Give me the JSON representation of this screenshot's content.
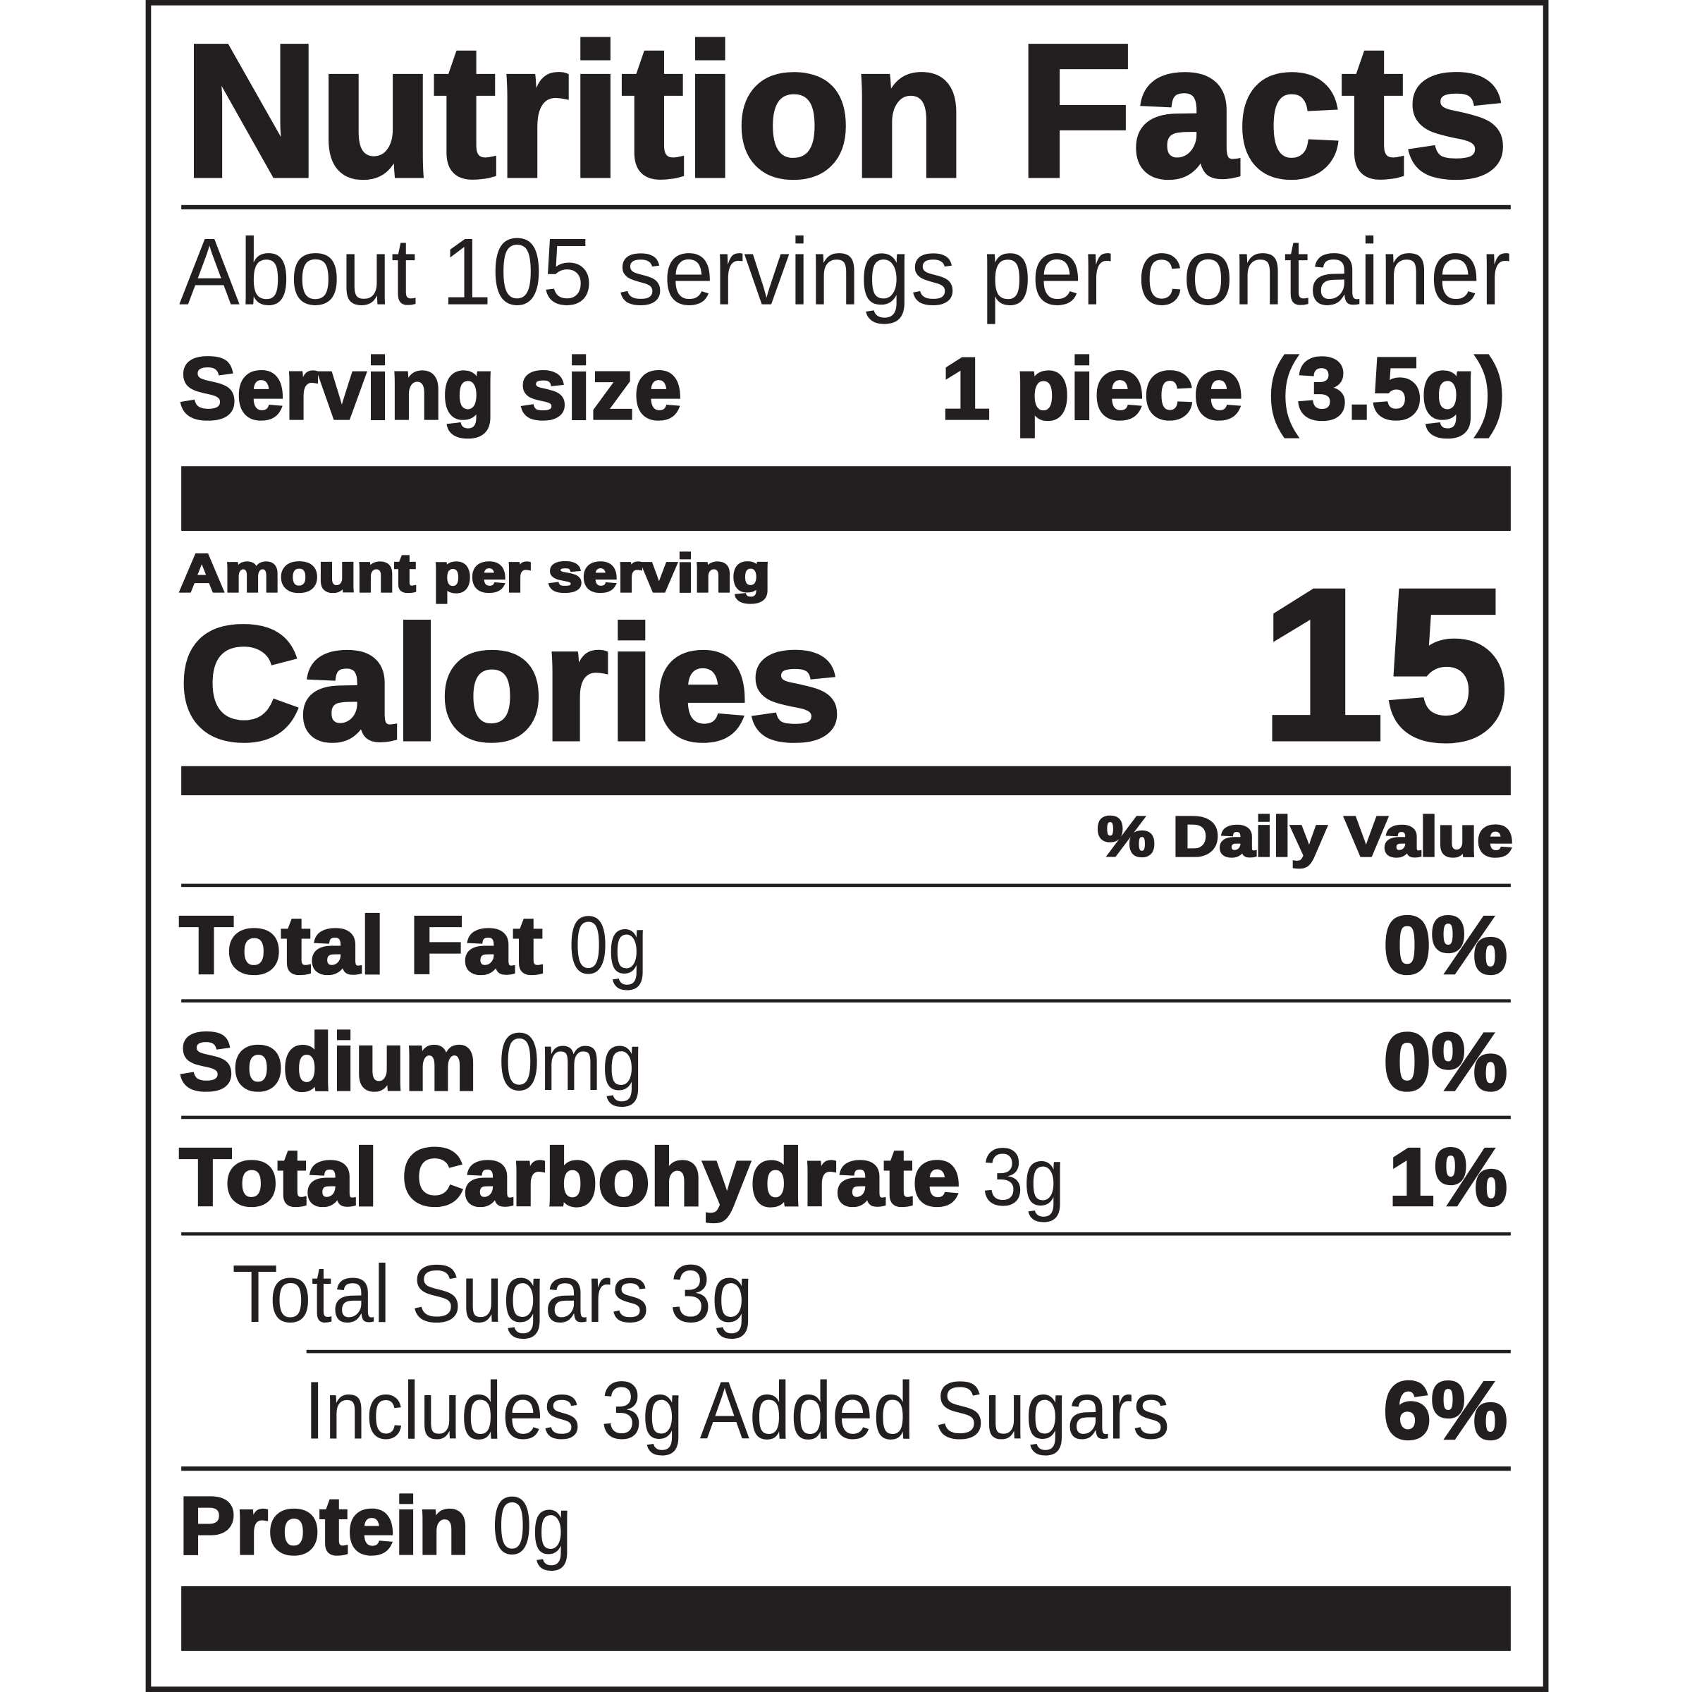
{
  "label": {
    "title": "Nutrition Facts",
    "servings_per_container": "About 105 servings per container",
    "serving_size": {
      "label": "Serving size",
      "value": "1 piece (3.5g)"
    },
    "amount_per_serving": "Amount per serving",
    "calories": {
      "label": "Calories",
      "value": "15"
    },
    "daily_value_header": "% Daily Value",
    "nutrients": [
      {
        "name": "Total Fat",
        "amount": "0g",
        "dv": "0%"
      },
      {
        "name": "Sodium",
        "amount": "0mg",
        "dv": "0%"
      },
      {
        "name": "Total Carbohydrate",
        "amount": "3g",
        "dv": "1%"
      },
      {
        "name": "Total Sugars 3g"
      },
      {
        "name": "Includes 3g Added Sugars",
        "dv": "6%"
      },
      {
        "name": "Protein",
        "amount": "0g"
      }
    ]
  },
  "colors": {
    "ink": "#231f20",
    "background": "#ffffff"
  }
}
